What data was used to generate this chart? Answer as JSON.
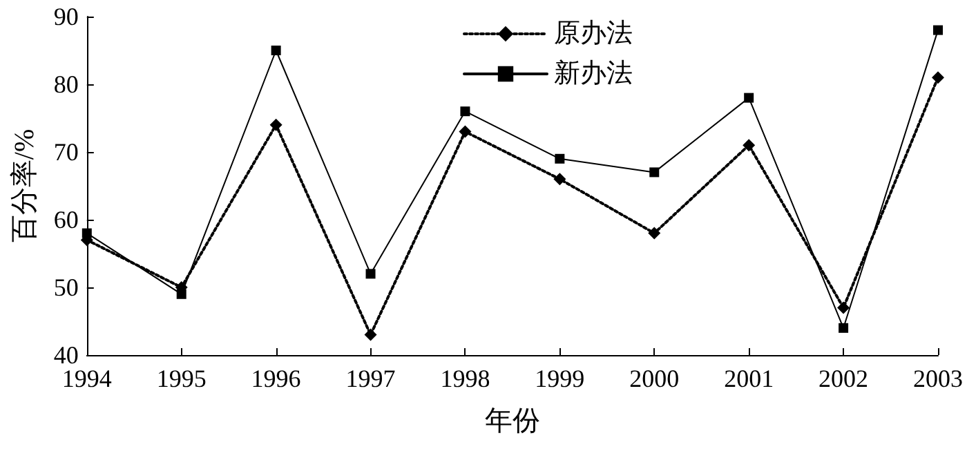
{
  "chart_data": {
    "type": "line",
    "xlabel": "年份",
    "ylabel": "百分率/%",
    "categories": [
      "1994",
      "1995",
      "1996",
      "1997",
      "1998",
      "1999",
      "2000",
      "2001",
      "2002",
      "2003"
    ],
    "series": [
      {
        "name": "原办法",
        "color": "#000000",
        "marker": "diamond",
        "line_style": "dotted",
        "values": [
          57,
          50,
          74,
          43,
          73,
          66,
          58,
          71,
          47,
          81
        ]
      },
      {
        "name": "新办法",
        "color": "#000000",
        "marker": "square",
        "line_style": "solid",
        "values": [
          58,
          49,
          85,
          52,
          76,
          69,
          67,
          78,
          44,
          88
        ]
      }
    ],
    "ylim": [
      40,
      90
    ],
    "yticks": [
      40,
      50,
      60,
      70,
      80,
      90
    ],
    "grid": false,
    "legend": "top"
  }
}
